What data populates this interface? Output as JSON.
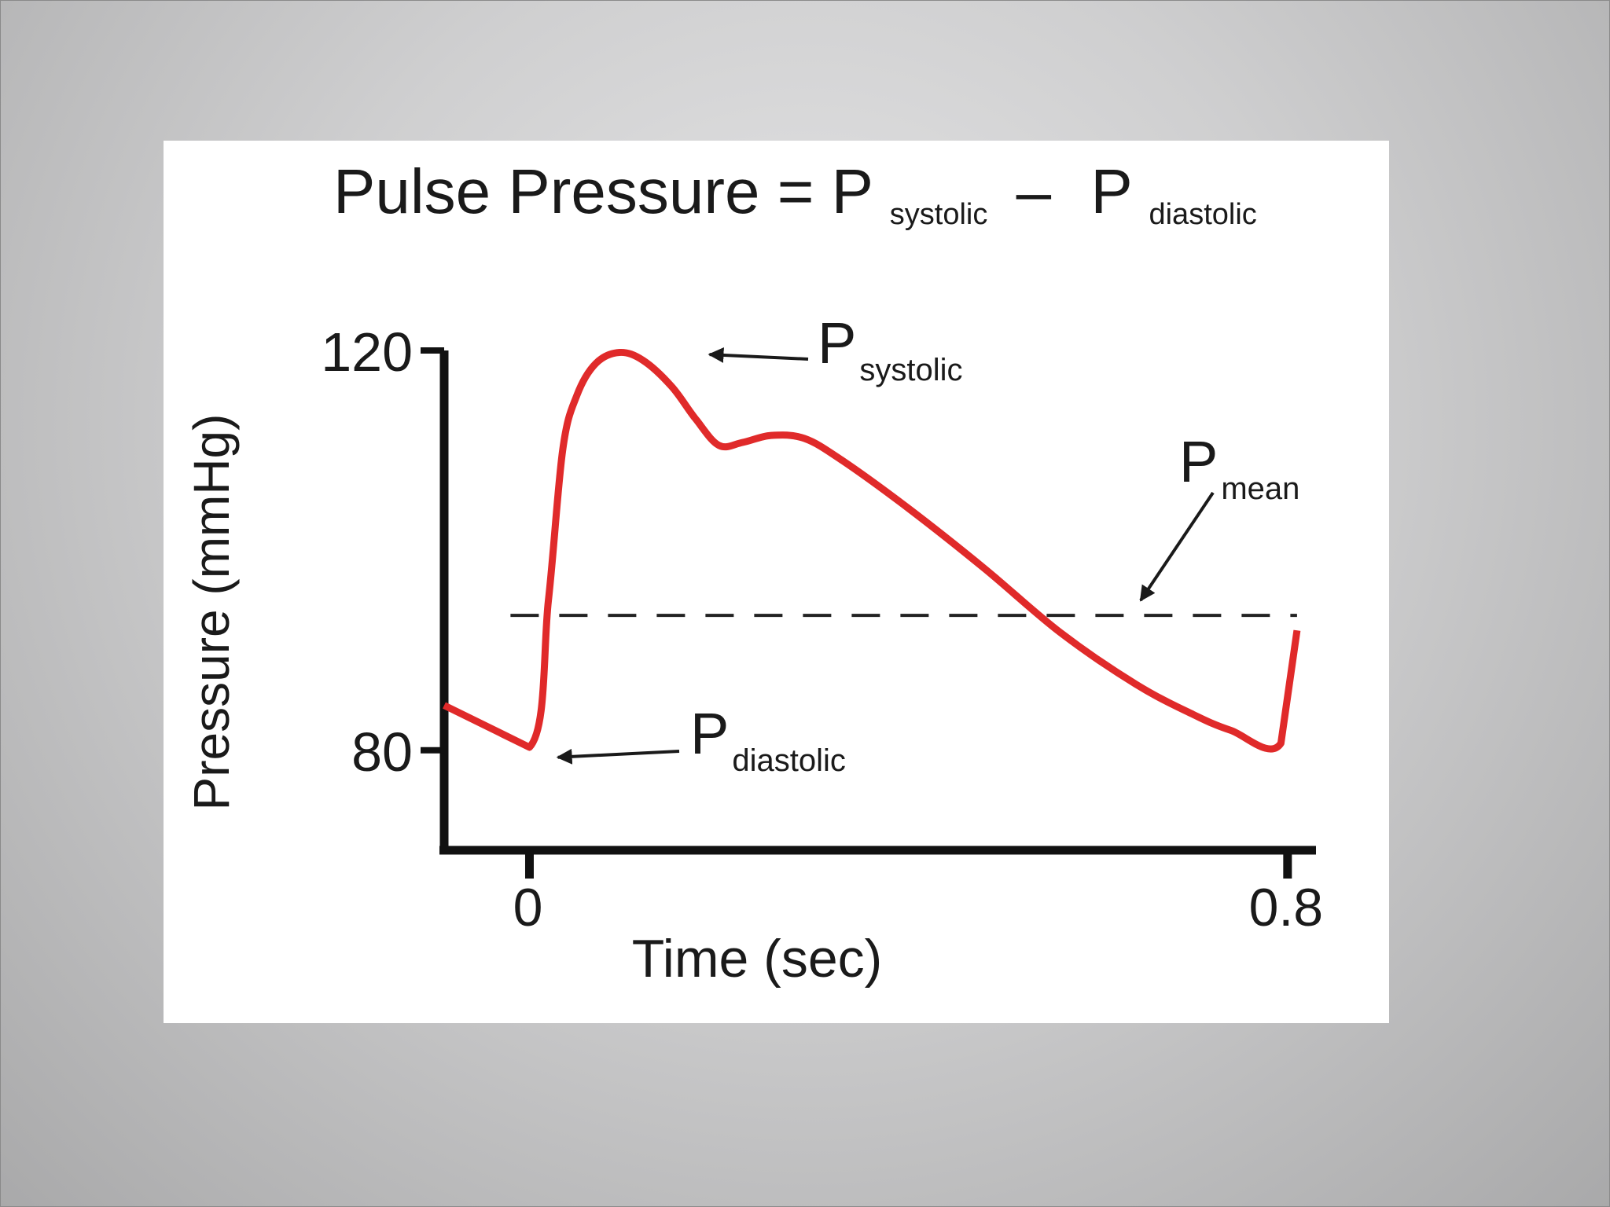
{
  "chart_data": {
    "type": "line",
    "title_parts": {
      "main": "Pulse Pressure = P",
      "sub1": "systolic",
      "minus": "–",
      "p2": "P",
      "sub2": "diastolic"
    },
    "xlabel": "Time (sec)",
    "ylabel": "Pressure (mmHg)",
    "xlim": [
      -0.09,
      0.83
    ],
    "ylim": [
      70,
      120
    ],
    "xticks": [
      {
        "value": 0,
        "label": "0"
      },
      {
        "value": 0.8,
        "label": "0.8"
      }
    ],
    "yticks": [
      {
        "value": 120,
        "label": "120"
      },
      {
        "value": 80,
        "label": "80"
      }
    ],
    "series": [
      {
        "color": "#e02a2a",
        "points": [
          [
            -0.09,
            84.5
          ],
          [
            0.0,
            80.3
          ],
          [
            0.02,
            95.0
          ],
          [
            0.035,
            110.0
          ],
          [
            0.05,
            115.5
          ],
          [
            0.07,
            118.7
          ],
          [
            0.095,
            119.8
          ],
          [
            0.12,
            119.0
          ],
          [
            0.15,
            116.4
          ],
          [
            0.175,
            113.2
          ],
          [
            0.2,
            110.5
          ],
          [
            0.225,
            110.8
          ],
          [
            0.255,
            111.5
          ],
          [
            0.29,
            111.2
          ],
          [
            0.33,
            109.0
          ],
          [
            0.4,
            104.2
          ],
          [
            0.48,
            98.2
          ],
          [
            0.56,
            91.8
          ],
          [
            0.64,
            86.6
          ],
          [
            0.7,
            83.6
          ],
          [
            0.74,
            82.0
          ],
          [
            0.793,
            80.7
          ],
          [
            0.81,
            92.0
          ]
        ]
      }
    ],
    "mean_line": {
      "value": 93.5,
      "style": "dashed",
      "color": "#222222"
    },
    "annotations": [
      {
        "p": "P",
        "sub": "systolic",
        "points_to": [
          0.16,
          120
        ]
      },
      {
        "p": "P",
        "sub": "diastolic",
        "points_to": [
          0.03,
          80
        ]
      },
      {
        "p": "P",
        "sub": "mean",
        "points_to": [
          0.645,
          95
        ]
      }
    ]
  }
}
